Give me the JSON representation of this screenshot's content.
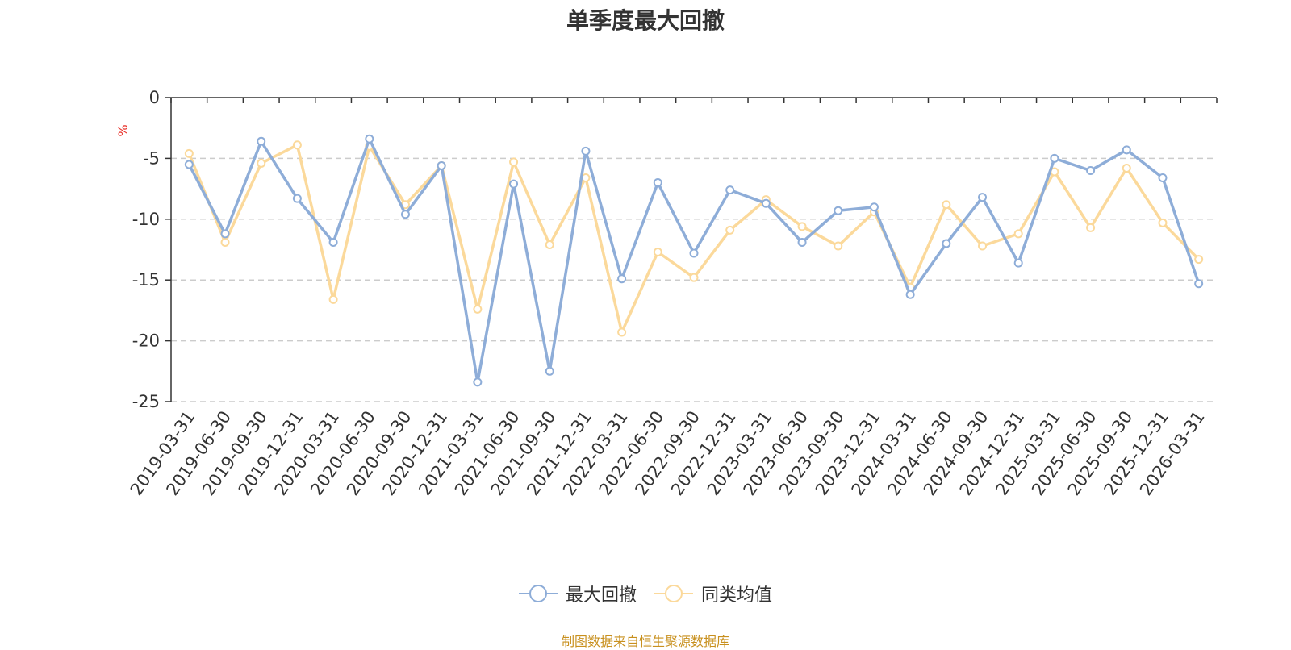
{
  "chart_data": {
    "type": "line",
    "title": "单季度最大回撤",
    "ylabel": "%",
    "xlabel": "",
    "ylim": [
      -25,
      0
    ],
    "yticks": [
      0,
      -5,
      -10,
      -15,
      -20,
      -25
    ],
    "grid": true,
    "legend_position": "bottom-center",
    "categories": [
      "2019-03-31",
      "2019-06-30",
      "2019-09-30",
      "2019-12-31",
      "2020-03-31",
      "2020-06-30",
      "2020-09-30",
      "2020-12-31",
      "2021-03-31",
      "2021-06-30",
      "2021-09-30",
      "2021-12-31",
      "2022-03-31",
      "2022-06-30",
      "2022-09-30",
      "2022-12-31",
      "2023-03-31",
      "2023-06-30",
      "2023-09-30",
      "2023-12-31",
      "2024-03-31",
      "2024-06-30",
      "2024-09-30",
      "2024-12-31",
      "2025-03-31",
      "2025-06-30",
      "2025-09-30",
      "2025-12-31",
      "2026-03-31"
    ],
    "series": [
      {
        "name": "最大回撤",
        "color": "#8eadd8",
        "values": [
          -5.5,
          -11.2,
          -3.6,
          -8.3,
          -11.9,
          -3.4,
          -9.6,
          -5.6,
          -23.4,
          -7.1,
          -22.5,
          -4.4,
          -14.9,
          -7.0,
          -12.8,
          -7.6,
          -8.7,
          -11.9,
          -9.3,
          -9.0,
          -16.2,
          -12.0,
          -8.2,
          -13.6,
          -5.0,
          -6.0,
          -4.3,
          -6.6,
          -15.3
        ]
      },
      {
        "name": "同类均值",
        "color": "#fbd99b",
        "values": [
          -4.6,
          -11.9,
          -5.4,
          -3.9,
          -16.6,
          -4.0,
          -8.8,
          -5.6,
          -17.4,
          -5.3,
          -12.1,
          -6.6,
          -19.3,
          -12.7,
          -14.8,
          -10.9,
          -8.4,
          -10.6,
          -12.2,
          -9.4,
          -15.6,
          -8.8,
          -12.2,
          -11.2,
          -6.1,
          -10.7,
          -5.8,
          -10.3,
          -13.3
        ]
      }
    ]
  },
  "source_note": "制图数据来自恒生聚源数据库"
}
